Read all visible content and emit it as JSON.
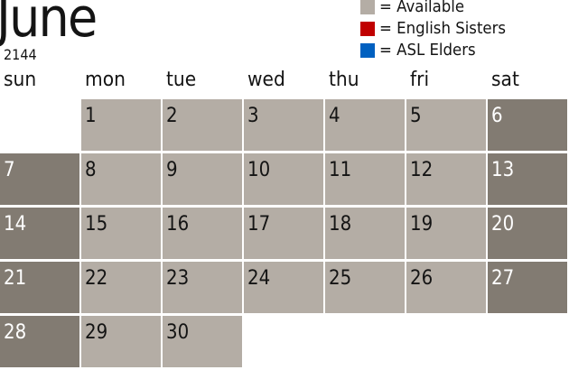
{
  "header": {
    "month": "June",
    "year": "2144"
  },
  "legend": [
    {
      "label": "= Available",
      "color": "#b4ada5"
    },
    {
      "label": "= English Sisters",
      "color": "#c00000"
    },
    {
      "label": "= ASL Elders",
      "color": "#0060c0"
    }
  ],
  "weekdays": [
    "sun",
    "mon",
    "tue",
    "wed",
    "thu",
    "fri",
    "sat"
  ],
  "calendar": {
    "first_weekday_index": 1,
    "days_in_month": 30,
    "weekday_color": "#b4ada5",
    "weekend_color": "#827b72"
  }
}
